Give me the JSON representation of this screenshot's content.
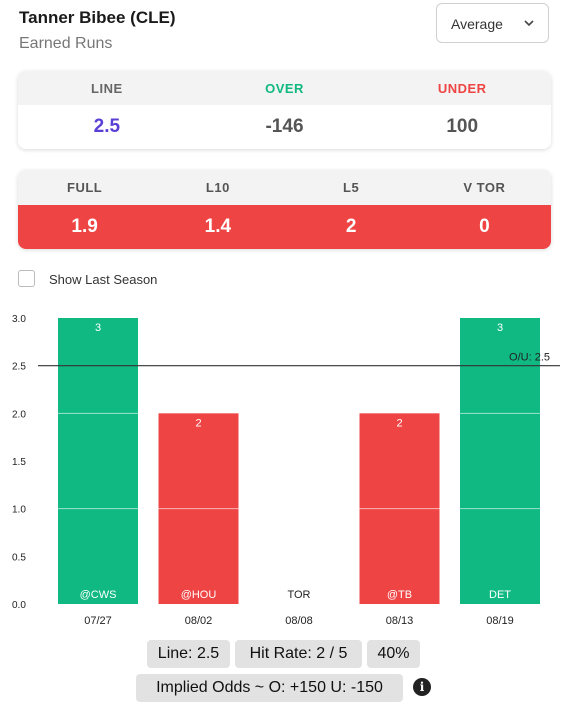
{
  "header": {
    "player": "Tanner Bibee (CLE)",
    "stat": "Earned Runs",
    "select": {
      "value": "Average",
      "icon": "chevron-down-icon"
    }
  },
  "odds": {
    "line_label": "LINE",
    "over_label": "OVER",
    "under_label": "UNDER",
    "line": "2.5",
    "over": "-146",
    "under": "100",
    "colors": {
      "line": "#5b3fd6",
      "over": "#10b981",
      "under": "#ef4444"
    }
  },
  "splits": [
    {
      "label": "FULL",
      "value": "1.9"
    },
    {
      "label": "L10",
      "value": "1.4"
    },
    {
      "label": "L5",
      "value": "2"
    },
    {
      "label": "V TOR",
      "value": "0"
    }
  ],
  "toggle": {
    "label": "Show Last Season",
    "checked": false
  },
  "chart_data": {
    "type": "bar",
    "categories": [
      "07/27",
      "08/02",
      "08/08",
      "08/13",
      "08/19"
    ],
    "opponents": [
      "@CWS",
      "@HOU",
      "TOR",
      "@TB",
      "DET"
    ],
    "values": [
      3,
      2,
      null,
      2,
      3
    ],
    "data_labels": [
      "3",
      "2",
      "",
      "2",
      "3"
    ],
    "ylim": [
      0,
      3
    ],
    "yticks": [
      "3.0",
      "2.5",
      "2.0",
      "1.5",
      "1.0",
      "0.5",
      "0.0"
    ],
    "reference_line": {
      "value": 2.5,
      "label": "O/U: 2.5"
    },
    "colors": {
      "over": "#10b981",
      "under": "#ef4444"
    },
    "grid": false
  },
  "footer": {
    "line": "Line: 2.5",
    "hit_rate": "Hit Rate: 2 / 5",
    "pct": "40%",
    "implied": "Implied Odds ~ O: +150 U: -150",
    "info_icon": "info-icon"
  }
}
